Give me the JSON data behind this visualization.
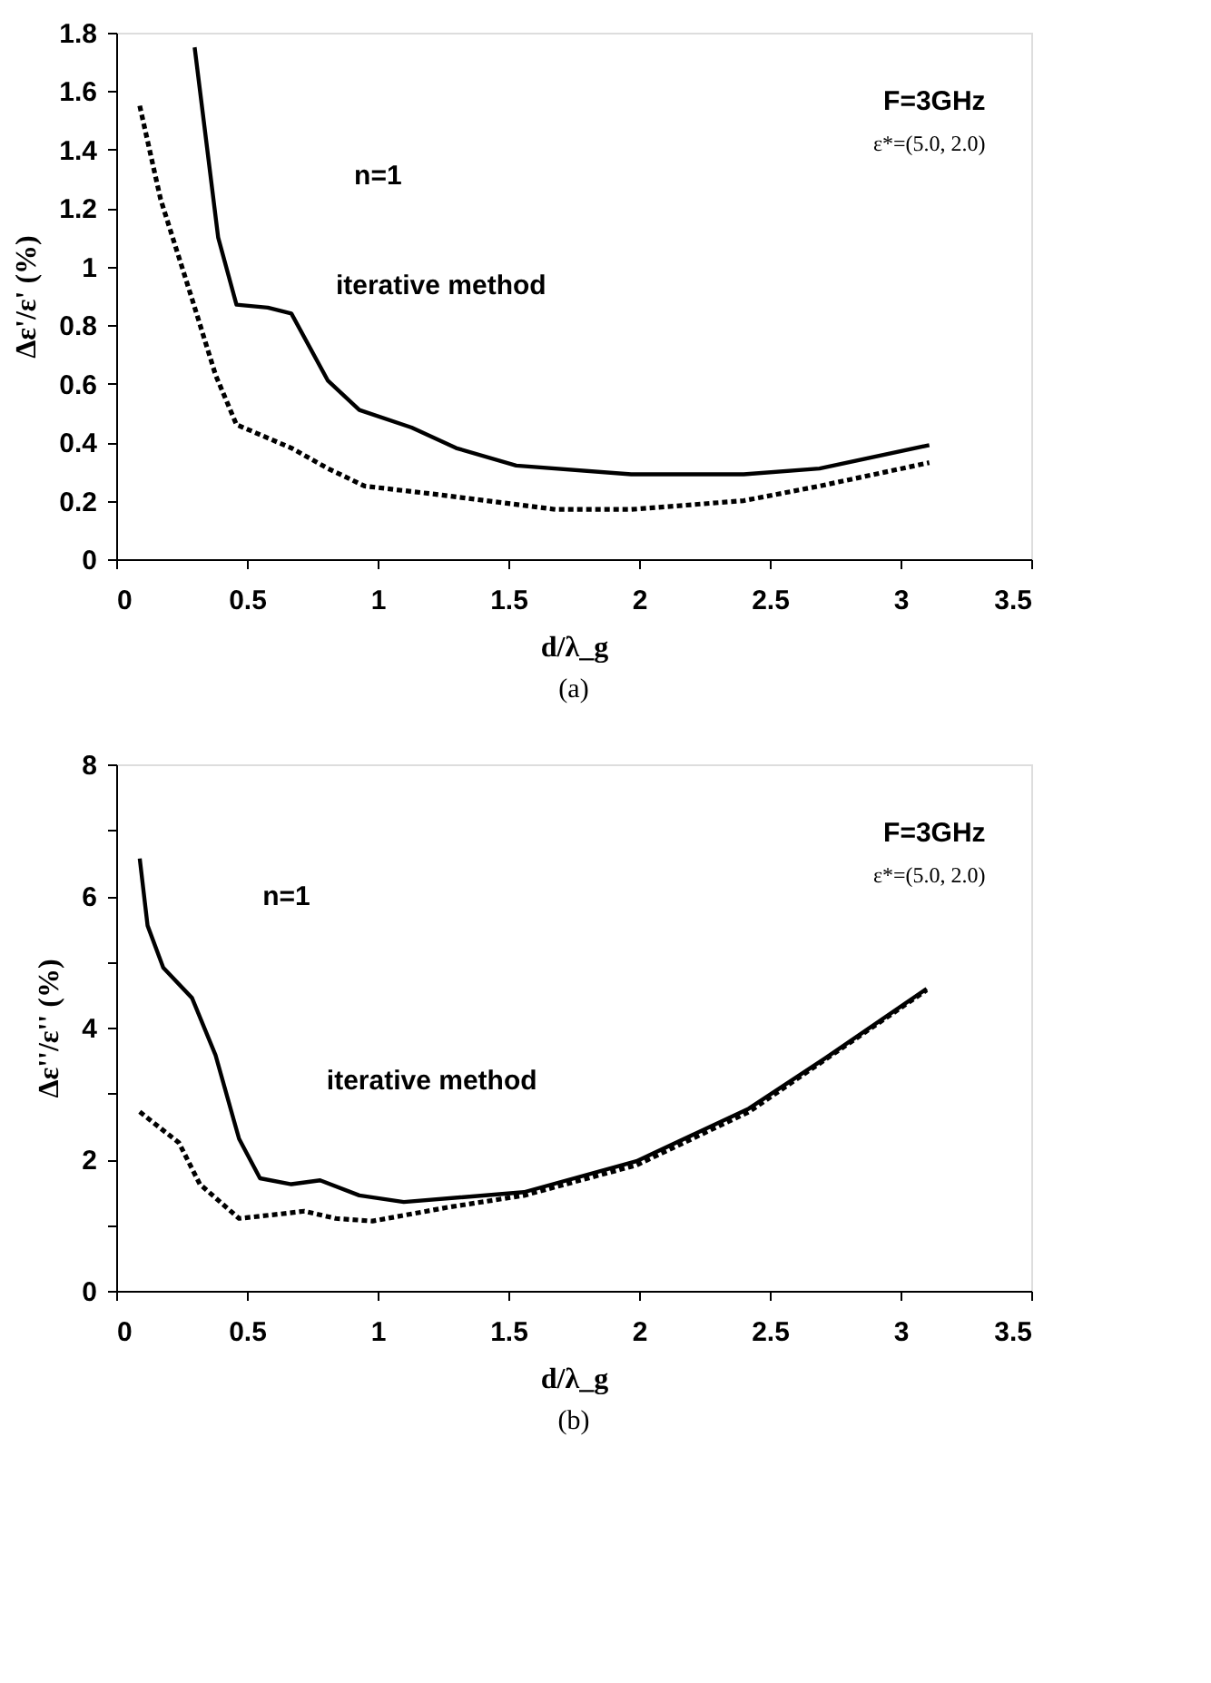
{
  "chart_data": [
    {
      "type": "line",
      "xlabel": "d/λ_g",
      "ylabel": "Δε'/ε' (%)",
      "xlim": [
        0,
        3.5
      ],
      "ylim": [
        0,
        1.8
      ],
      "xticks": [
        0,
        0.5,
        1,
        1.5,
        2,
        2.5,
        3,
        3.5
      ],
      "yticks": [
        0,
        0.2,
        0.4,
        0.6,
        0.8,
        1,
        1.2,
        1.4,
        1.6,
        1.8
      ],
      "grid": false,
      "marker": "none",
      "annotations": [
        "n=1",
        "iterative method",
        "F=3GHz",
        "ε*=(5.0, 2.0)",
        "(a)"
      ],
      "series": [
        {
          "color": "#000000",
          "line_style": "solid",
          "x": [
            0.3,
            0.39,
            0.46,
            0.58,
            0.67,
            0.81,
            0.93,
            1.13,
            1.3,
            1.53,
            1.97,
            2.4,
            2.69,
            3.11
          ],
          "values": [
            1.75,
            1.1,
            0.87,
            0.86,
            0.84,
            0.61,
            0.51,
            0.45,
            0.38,
            0.32,
            0.29,
            0.29,
            0.31,
            0.39
          ]
        },
        {
          "color": "#000000",
          "line_style": "dotted",
          "x": [
            0.09,
            0.17,
            0.29,
            0.38,
            0.46,
            0.67,
            0.81,
            0.95,
            1.24,
            1.68,
            1.97,
            2.4,
            2.69,
            3.11
          ],
          "values": [
            1.55,
            1.23,
            0.89,
            0.63,
            0.46,
            0.38,
            0.31,
            0.25,
            0.22,
            0.17,
            0.17,
            0.2,
            0.25,
            0.33
          ]
        }
      ]
    },
    {
      "type": "line",
      "xlabel": "d/λ_g",
      "ylabel": "Δε''/ε'' (%)",
      "xlim": [
        0,
        3.5
      ],
      "ylim": [
        0,
        8
      ],
      "xticks": [
        0,
        0.5,
        1,
        1.5,
        2,
        2.5,
        3,
        3.5
      ],
      "yticks": [
        0,
        {
          "value": 1,
          "label": null
        },
        2,
        {
          "value": 3,
          "label": null
        },
        4,
        {
          "value": 5,
          "label": null
        },
        6,
        {
          "value": 7,
          "label": null
        },
        8
      ],
      "grid": false,
      "marker": "none",
      "annotations": [
        "n=1",
        "iterative method",
        "F=3GHz",
        "ε*=(5.0, 2.0)",
        "(b)"
      ],
      "series": [
        {
          "color": "#000000",
          "line_style": "solid",
          "x": [
            0.09,
            0.12,
            0.18,
            0.29,
            0.38,
            0.47,
            0.55,
            0.67,
            0.78,
            0.93,
            1.1,
            1.56,
            1.99,
            2.42,
            2.71,
            3.1
          ],
          "values": [
            6.57,
            5.55,
            4.91,
            4.45,
            3.58,
            2.31,
            1.71,
            1.62,
            1.68,
            1.45,
            1.35,
            1.5,
            1.97,
            2.77,
            3.53,
            4.59
          ]
        },
        {
          "color": "#000000",
          "line_style": "dotted",
          "x": [
            0.09,
            0.24,
            0.32,
            0.47,
            0.61,
            0.72,
            0.84,
            0.98,
            1.27,
            1.56,
            1.99,
            2.42,
            3.1
          ],
          "values": [
            2.72,
            2.25,
            1.62,
            1.1,
            1.16,
            1.21,
            1.1,
            1.06,
            1.27,
            1.45,
            1.91,
            2.72,
            4.57
          ]
        }
      ]
    }
  ]
}
